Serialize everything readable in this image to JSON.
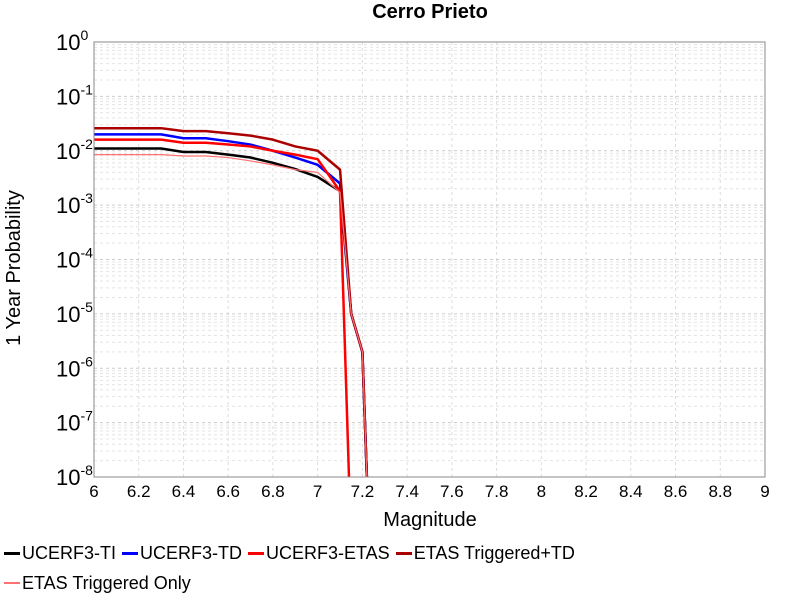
{
  "chart_data": {
    "type": "line",
    "title": "Cerro Prieto",
    "xlabel": "Magnitude",
    "ylabel": "1 Year Probability",
    "xlim": [
      6,
      9
    ],
    "ylim": [
      1e-08,
      1
    ],
    "y_scale": "log",
    "grid": true,
    "legend_position": "bottom",
    "x_ticks": [
      "6",
      "6.2",
      "6.4",
      "6.6",
      "6.8",
      "7",
      "7.2",
      "7.4",
      "7.6",
      "7.8",
      "8",
      "8.2",
      "8.4",
      "8.6",
      "8.8",
      "9"
    ],
    "y_ticks": [
      {
        "base": "10",
        "exp": "0"
      },
      {
        "base": "10",
        "exp": "-1"
      },
      {
        "base": "10",
        "exp": "-2"
      },
      {
        "base": "10",
        "exp": "-3"
      },
      {
        "base": "10",
        "exp": "-4"
      },
      {
        "base": "10",
        "exp": "-5"
      },
      {
        "base": "10",
        "exp": "-6"
      },
      {
        "base": "10",
        "exp": "-7"
      },
      {
        "base": "10",
        "exp": "-8"
      }
    ],
    "series": [
      {
        "name": "UCERF3-TI",
        "color": "#000000",
        "width": 2.5,
        "x": [
          6.0,
          6.1,
          6.2,
          6.3,
          6.4,
          6.5,
          6.6,
          6.7,
          6.8,
          6.9,
          7.0,
          7.1,
          7.15,
          7.2,
          7.22
        ],
        "y": [
          0.011,
          0.011,
          0.011,
          0.011,
          0.0095,
          0.0095,
          0.0085,
          0.0075,
          0.006,
          0.0046,
          0.0033,
          0.0018,
          1e-05,
          2e-06,
          1e-08
        ]
      },
      {
        "name": "UCERF3-TD",
        "color": "#0000ff",
        "width": 2.5,
        "x": [
          6.0,
          6.1,
          6.2,
          6.3,
          6.4,
          6.5,
          6.6,
          6.7,
          6.8,
          6.9,
          7.0,
          7.1,
          7.15,
          7.2,
          7.22
        ],
        "y": [
          0.02,
          0.02,
          0.02,
          0.02,
          0.017,
          0.017,
          0.015,
          0.013,
          0.01,
          0.0075,
          0.0055,
          0.0025,
          1e-05,
          2e-06,
          1e-08
        ]
      },
      {
        "name": "UCERF3-ETAS",
        "color": "#ff0000",
        "width": 2.5,
        "x": [
          6.0,
          6.1,
          6.2,
          6.3,
          6.4,
          6.5,
          6.6,
          6.7,
          6.8,
          6.9,
          7.0,
          7.1,
          7.14
        ],
        "y": [
          0.016,
          0.016,
          0.016,
          0.016,
          0.014,
          0.014,
          0.013,
          0.012,
          0.01,
          0.0085,
          0.007,
          0.0018,
          1e-08
        ]
      },
      {
        "name": "ETAS Triggered+TD",
        "color": "#aa0000",
        "width": 2.5,
        "x": [
          6.0,
          6.1,
          6.2,
          6.3,
          6.4,
          6.5,
          6.6,
          6.7,
          6.8,
          6.9,
          7.0,
          7.1,
          7.15,
          7.2,
          7.22
        ],
        "y": [
          0.026,
          0.026,
          0.026,
          0.026,
          0.023,
          0.023,
          0.021,
          0.019,
          0.016,
          0.012,
          0.01,
          0.0045,
          1e-05,
          2e-06,
          1e-08
        ]
      },
      {
        "name": "ETAS Triggered Only",
        "color": "#ff7070",
        "width": 1.2,
        "x": [
          6.0,
          6.1,
          6.2,
          6.3,
          6.4,
          6.5,
          6.6,
          6.7,
          6.8,
          6.9,
          7.0,
          7.1,
          7.15,
          7.2,
          7.22
        ],
        "y": [
          0.0085,
          0.0085,
          0.0085,
          0.0085,
          0.008,
          0.008,
          0.0075,
          0.0065,
          0.0055,
          0.0045,
          0.004,
          0.0017,
          1e-05,
          2e-06,
          1e-08
        ]
      }
    ]
  }
}
